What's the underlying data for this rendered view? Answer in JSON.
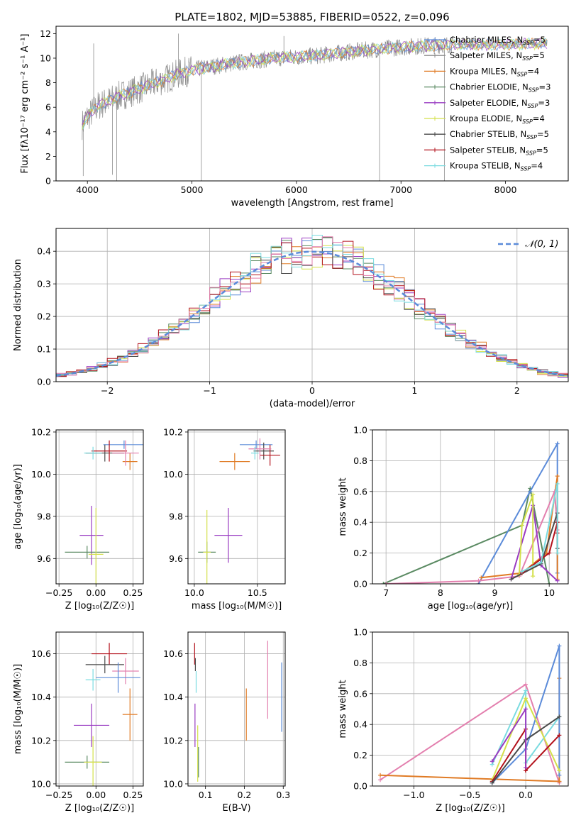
{
  "figure": {
    "title": "PLATE=1802, MJD=53885, FIBERID=0522, z=0.096"
  },
  "colors": {
    "cm": "#5b8bd9",
    "sm": "#8c8c8c",
    "km": "#e07b25",
    "ce": "#5a8a62",
    "se": "#9a3cc2",
    "ke": "#d4e04a",
    "cs": "#4a4a4a",
    "ss": "#b3121c",
    "ks": "#7adbe0",
    "pink": "#e37fae",
    "spectrum": "#8c8c8c",
    "normal": "#5b8bd9"
  },
  "legend_labels": [
    {
      "name": "Chabrier MILES",
      "n": "5",
      "color": "#5b8bd9"
    },
    {
      "name": "Salpeter MILES",
      "n": "5",
      "color": "#8c8c8c"
    },
    {
      "name": "Kroupa MILES",
      "n": "4",
      "color": "#e07b25"
    },
    {
      "name": "Chabrier ELODIE",
      "n": "3",
      "color": "#5a8a62"
    },
    {
      "name": "Salpeter ELODIE",
      "n": "3",
      "color": "#9a3cc2"
    },
    {
      "name": "Kroupa ELODIE",
      "n": "4",
      "color": "#d4e04a"
    },
    {
      "name": "Chabrier STELIB",
      "n": "5",
      "color": "#4a4a4a"
    },
    {
      "name": "Salpeter STELIB",
      "n": "5",
      "color": "#b3121c"
    },
    {
      "name": "Kroupa STELIB",
      "n": "4",
      "color": "#7adbe0"
    }
  ],
  "chart_data": [
    {
      "id": "spectrum",
      "type": "line",
      "xlabel": "wavelength [Angstrom, rest frame]",
      "ylabel": "Flux [fλ10⁻¹⁷ erg cm⁻² s⁻¹ A⁻¹]",
      "xlim": [
        3700,
        8600
      ],
      "ylim": [
        0,
        12.6
      ],
      "xticks": [
        4000,
        5000,
        6000,
        7000,
        8000
      ],
      "yticks": [
        0,
        2,
        4,
        6,
        8,
        10,
        12
      ],
      "x_range": [
        3950,
        8400
      ],
      "continuum": {
        "x": [
          3950,
          4000,
          4100,
          4300,
          4500,
          4900,
          5100,
          5400,
          5800,
          6200,
          6600,
          7000,
          7400,
          7800,
          8400
        ],
        "y": [
          4.6,
          5.2,
          6.1,
          6.9,
          7.5,
          8.8,
          9.2,
          9.6,
          10.0,
          10.2,
          10.6,
          10.9,
          11.1,
          11.1,
          11.2
        ]
      },
      "noise_amplitude": 0.9,
      "spikes": [
        {
          "x": 5090,
          "y": 0
        },
        {
          "x": 4280,
          "y": 0
        },
        {
          "x": 4240,
          "y": 0.5
        },
        {
          "x": 3960,
          "y": 0.4
        },
        {
          "x": 6795,
          "y": 0
        },
        {
          "x": 7415,
          "y": 0
        },
        {
          "x": 4060,
          "y": 11.2
        },
        {
          "x": 4870,
          "y": 12.0
        },
        {
          "x": 5880,
          "y": 11.8
        }
      ],
      "legend_position": "right",
      "grid": false
    },
    {
      "id": "residuals",
      "type": "histogram",
      "xlabel": "(data-model)/error",
      "ylabel": "Normed distribution",
      "xlim": [
        -2.5,
        2.5
      ],
      "ylim": [
        0,
        0.47
      ],
      "xticks": [
        -2,
        -1,
        0,
        1,
        2
      ],
      "yticks": [
        0,
        0.1,
        0.2,
        0.3,
        0.4
      ],
      "bins": 50,
      "series_colors": [
        "#5b8bd9",
        "#e07b25",
        "#5a8a62",
        "#9a3cc2",
        "#d4e04a",
        "#4a4a4a",
        "#b3121c",
        "#7adbe0",
        "#e37fae"
      ],
      "normal_label": "𝒩(0, 1)",
      "legend_position": "top-right",
      "grid": true
    },
    {
      "id": "age_vs_Z",
      "type": "errorbar",
      "xlabel": "Z [log₁₀(Z/Z☉)]",
      "ylabel": "age  [log₁₀(age/yr)]",
      "xlim": [
        -0.27,
        0.32
      ],
      "ylim": [
        9.48,
        10.21
      ],
      "xticks": [
        -0.25,
        0,
        0.25
      ],
      "xticklabels": [
        "−0.25",
        "0.00",
        "0.25"
      ],
      "yticks": [
        9.6,
        9.8,
        10.0,
        10.2
      ],
      "grid": true,
      "points": [
        {
          "c": "cm",
          "x": 0.19,
          "xe": 0.14,
          "y": 10.14,
          "ye": 0.02
        },
        {
          "c": "km",
          "x": 0.23,
          "xe": 0.05,
          "y": 10.06,
          "ye": 0.04
        },
        {
          "c": "cs",
          "x": 0.06,
          "xe": 0.13,
          "y": 10.1,
          "ye": 0.04
        },
        {
          "c": "ss",
          "x": 0.09,
          "xe": 0.12,
          "y": 10.11,
          "ye": 0.05
        },
        {
          "c": "pink",
          "x": 0.2,
          "xe": 0.09,
          "y": 10.1,
          "ye": 0.06
        },
        {
          "c": "ks",
          "x": -0.02,
          "xe": 0.06,
          "y": 10.1,
          "ye": 0.03
        },
        {
          "c": "se",
          "x": -0.03,
          "xe": 0.08,
          "y": 9.71,
          "ye": 0.14
        },
        {
          "c": "ce",
          "x": -0.06,
          "xe": 0.15,
          "y": 9.63,
          "ye": 0.03
        },
        {
          "c": "ke",
          "x": 0.0,
          "xe": 0.05,
          "y": 9.62,
          "ye": 0.22
        }
      ]
    },
    {
      "id": "age_vs_mass",
      "type": "errorbar",
      "xlabel": "mass [log₁₀(M/M☉)]",
      "ylabel": "",
      "xlim": [
        9.95,
        10.72
      ],
      "ylim": [
        9.48,
        10.21
      ],
      "xticks": [
        10.0,
        10.5
      ],
      "xticklabels": [
        "10.0",
        "10.5"
      ],
      "yticks": [
        9.6,
        9.8,
        10.0,
        10.2
      ],
      "grid": true,
      "points": [
        {
          "c": "cm",
          "x": 10.49,
          "xe": 0.13,
          "y": 10.14,
          "ye": 0.02
        },
        {
          "c": "km",
          "x": 10.32,
          "xe": 0.12,
          "y": 10.06,
          "ye": 0.04
        },
        {
          "c": "cs",
          "x": 10.55,
          "xe": 0.08,
          "y": 10.11,
          "ye": 0.04
        },
        {
          "c": "ss",
          "x": 10.6,
          "xe": 0.08,
          "y": 10.09,
          "ye": 0.05
        },
        {
          "c": "pink",
          "x": 10.52,
          "xe": 0.09,
          "y": 10.12,
          "ye": 0.05
        },
        {
          "c": "ks",
          "x": 10.48,
          "xe": 0.03,
          "y": 10.1,
          "ye": 0.03
        },
        {
          "c": "se",
          "x": 10.27,
          "xe": 0.11,
          "y": 9.71,
          "ye": 0.13
        },
        {
          "c": "ce",
          "x": 10.1,
          "xe": 0.07,
          "y": 9.63,
          "ye": 0.05
        },
        {
          "c": "ke",
          "x": 10.1,
          "xe": 0.03,
          "y": 9.63,
          "ye": 0.2
        }
      ]
    },
    {
      "id": "weight_vs_age",
      "type": "line",
      "xlabel": "age  [log₁₀(age/yr)]",
      "ylabel": "mass weight",
      "xlim": [
        6.75,
        10.35
      ],
      "ylim": [
        0,
        1
      ],
      "xticks": [
        7,
        8,
        9,
        10
      ],
      "yticks": [
        0,
        0.2,
        0.4,
        0.6,
        0.8,
        1.0
      ],
      "grid": true,
      "series": [
        {
          "c": "ce",
          "pts": [
            [
              6.95,
              0.0
            ],
            [
              9.5,
              0.38
            ],
            [
              9.65,
              0.62
            ],
            [
              10.0,
              0.0
            ]
          ]
        },
        {
          "c": "cm",
          "pts": [
            [
              8.7,
              0.0
            ],
            [
              9.65,
              0.6
            ],
            [
              10.15,
              0.91
            ],
            [
              10.15,
              0.07
            ]
          ]
        },
        {
          "c": "km",
          "pts": [
            [
              8.75,
              0.04
            ],
            [
              9.5,
              0.07
            ],
            [
              9.95,
              0.2
            ],
            [
              10.15,
              0.7
            ],
            [
              10.15,
              0.03
            ]
          ]
        },
        {
          "c": "pink",
          "pts": [
            [
              7.0,
              0.0
            ],
            [
              8.7,
              0.02
            ],
            [
              9.45,
              0.05
            ],
            [
              10.1,
              0.6
            ],
            [
              10.15,
              0.35
            ]
          ]
        },
        {
          "c": "se",
          "pts": [
            [
              9.3,
              0.03
            ],
            [
              9.7,
              0.51
            ],
            [
              9.85,
              0.12
            ],
            [
              10.15,
              0.02
            ]
          ]
        },
        {
          "c": "ke",
          "pts": [
            [
              9.45,
              0.06
            ],
            [
              9.5,
              0.38
            ],
            [
              9.7,
              0.58
            ],
            [
              9.7,
              0.05
            ]
          ]
        },
        {
          "c": "cs",
          "pts": [
            [
              9.3,
              0.03
            ],
            [
              9.85,
              0.13
            ],
            [
              10.15,
              0.46
            ],
            [
              10.15,
              0.23
            ]
          ]
        },
        {
          "c": "ss",
          "pts": [
            [
              9.5,
              0.07
            ],
            [
              10.0,
              0.2
            ],
            [
              10.15,
              0.4
            ],
            [
              10.15,
              0.33
            ]
          ]
        },
        {
          "c": "ks",
          "pts": [
            [
              9.5,
              0.08
            ],
            [
              9.85,
              0.14
            ],
            [
              10.15,
              0.65
            ],
            [
              10.15,
              0.2
            ]
          ]
        }
      ]
    },
    {
      "id": "mass_vs_Z",
      "type": "errorbar",
      "xlabel": "Z [log₁₀(Z/Z☉)]",
      "ylabel": "mass [log₁₀(M/M☉)]",
      "xlim": [
        -0.27,
        0.32
      ],
      "ylim": [
        9.99,
        10.7
      ],
      "xticks": [
        -0.25,
        0,
        0.25
      ],
      "xticklabels": [
        "−0.25",
        "0.00",
        "0.25"
      ],
      "yticks": [
        10.0,
        10.2,
        10.4,
        10.6
      ],
      "grid": true,
      "points": [
        {
          "c": "ss",
          "x": 0.09,
          "xe": 0.12,
          "y": 10.6,
          "ye": 0.05
        },
        {
          "c": "cs",
          "x": 0.06,
          "xe": 0.13,
          "y": 10.55,
          "ye": 0.04
        },
        {
          "c": "pink",
          "x": 0.2,
          "xe": 0.09,
          "y": 10.52,
          "ye": 0.06
        },
        {
          "c": "ks",
          "x": -0.02,
          "xe": 0.05,
          "y": 10.48,
          "ye": 0.05
        },
        {
          "c": "cm",
          "x": 0.15,
          "xe": 0.15,
          "y": 10.49,
          "ye": 0.07
        },
        {
          "c": "km",
          "x": 0.23,
          "xe": 0.05,
          "y": 10.32,
          "ye": 0.12
        },
        {
          "c": "se",
          "x": -0.03,
          "xe": 0.12,
          "y": 10.27,
          "ye": 0.1
        },
        {
          "c": "ce",
          "x": -0.06,
          "xe": 0.15,
          "y": 10.1,
          "ye": 0.03
        },
        {
          "c": "ke",
          "x": -0.02,
          "xe": 0.06,
          "y": 10.1,
          "ye": 0.12
        }
      ]
    },
    {
      "id": "mass_vs_ebv",
      "type": "errorbar",
      "xlabel": "E(B-V)",
      "ylabel": "",
      "xlim": [
        0.055,
        0.305
      ],
      "ylim": [
        9.99,
        10.7
      ],
      "xticks": [
        0.1,
        0.2,
        0.3
      ],
      "xticklabels": [
        "0.1",
        "0.2",
        "0.3"
      ],
      "yticks": [
        10.0,
        10.2,
        10.4,
        10.6
      ],
      "grid": true,
      "points": [
        {
          "c": "ss",
          "x": 0.072,
          "xe": 0,
          "y": 10.6,
          "ye": 0.05
        },
        {
          "c": "cs",
          "x": 0.074,
          "xe": 0,
          "y": 10.55,
          "ye": 0.03
        },
        {
          "c": "ks",
          "x": 0.076,
          "xe": 0,
          "y": 10.47,
          "ye": 0.05
        },
        {
          "c": "se",
          "x": 0.073,
          "xe": 0,
          "y": 10.27,
          "ye": 0.1
        },
        {
          "c": "ke",
          "x": 0.08,
          "xe": 0,
          "y": 10.14,
          "ye": 0.13
        },
        {
          "c": "ce",
          "x": 0.082,
          "xe": 0,
          "y": 10.1,
          "ye": 0.07
        },
        {
          "c": "km",
          "x": 0.205,
          "xe": 0,
          "y": 10.32,
          "ye": 0.12
        },
        {
          "c": "pink",
          "x": 0.26,
          "xe": 0,
          "y": 10.48,
          "ye": 0.18
        },
        {
          "c": "cm",
          "x": 0.296,
          "xe": 0,
          "y": 10.4,
          "ye": 0.16
        }
      ]
    },
    {
      "id": "weight_vs_Z",
      "type": "line",
      "xlabel": "Z [log₁₀(Z/Z☉)]",
      "ylabel": "mass weight",
      "xlim": [
        -1.37,
        0.38
      ],
      "ylim": [
        0,
        1
      ],
      "xticks": [
        -1.0,
        -0.5,
        0.0
      ],
      "xticklabels": [
        "−1.0",
        "−0.5",
        "0.0"
      ],
      "yticks": [
        0,
        0.2,
        0.4,
        0.6,
        0.8,
        1.0
      ],
      "grid": true,
      "series": [
        {
          "c": "pink",
          "pts": [
            [
              -1.3,
              0.04
            ],
            [
              0.0,
              0.66
            ],
            [
              0.3,
              0.02
            ]
          ]
        },
        {
          "c": "km",
          "pts": [
            [
              -1.3,
              0.07
            ],
            [
              0.3,
              0.03
            ],
            [
              0.3,
              0.7
            ],
            [
              0.3,
              0.03
            ]
          ]
        },
        {
          "c": "cm",
          "pts": [
            [
              -0.3,
              0.02
            ],
            [
              0.0,
              0.24
            ],
            [
              0.3,
              0.91
            ],
            [
              0.3,
              0.07
            ]
          ]
        },
        {
          "c": "ks",
          "pts": [
            [
              -0.3,
              0.14
            ],
            [
              0.0,
              0.62
            ],
            [
              0.0,
              0.15
            ],
            [
              0.3,
              0.45
            ]
          ]
        },
        {
          "c": "ke",
          "pts": [
            [
              -0.3,
              0.04
            ],
            [
              0.0,
              0.57
            ],
            [
              0.3,
              0.1
            ]
          ]
        },
        {
          "c": "ss",
          "pts": [
            [
              -0.3,
              0.03
            ],
            [
              0.0,
              0.37
            ],
            [
              0.0,
              0.1
            ],
            [
              0.3,
              0.33
            ]
          ]
        },
        {
          "c": "cs",
          "pts": [
            [
              -0.3,
              0.02
            ],
            [
              0.0,
              0.3
            ],
            [
              0.3,
              0.45
            ]
          ]
        },
        {
          "c": "se",
          "pts": [
            [
              -0.3,
              0.16
            ],
            [
              0.0,
              0.5
            ],
            [
              0.0,
              0.12
            ]
          ]
        }
      ]
    }
  ]
}
